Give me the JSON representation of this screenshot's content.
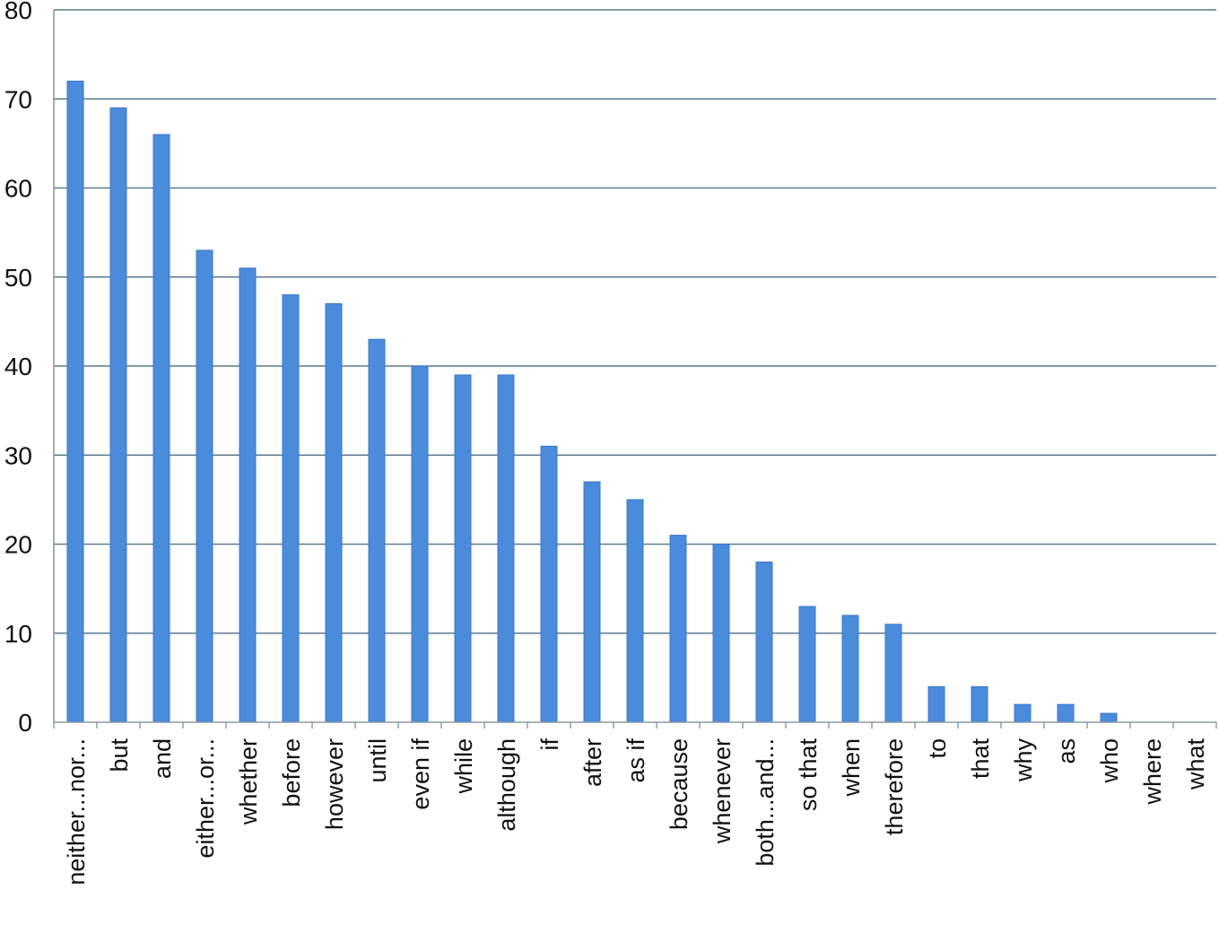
{
  "chart_data": {
    "type": "bar",
    "categories": [
      "neither...nor...",
      "but",
      "and",
      "either...or...",
      "whether",
      "before",
      "however",
      "until",
      "even if",
      "while",
      "although",
      "if",
      "after",
      "as if",
      "because",
      "whenever",
      "both...and...",
      "so that",
      "when",
      "therefore",
      "to",
      "that",
      "why",
      "as",
      "who",
      "where",
      "what"
    ],
    "values": [
      72,
      69,
      66,
      53,
      51,
      48,
      47,
      43,
      40,
      39,
      39,
      31,
      27,
      25,
      21,
      20,
      18,
      13,
      12,
      11,
      4,
      4,
      2,
      2,
      1,
      0,
      0
    ],
    "ylim": [
      0,
      80
    ],
    "yticks": [
      0,
      10,
      20,
      30,
      40,
      50,
      60,
      70,
      80
    ],
    "grid": true,
    "legend": "none",
    "bar_color": "#4a8bdc",
    "grid_color": "#5a7a8c",
    "title": "",
    "xlabel": "",
    "ylabel": ""
  }
}
